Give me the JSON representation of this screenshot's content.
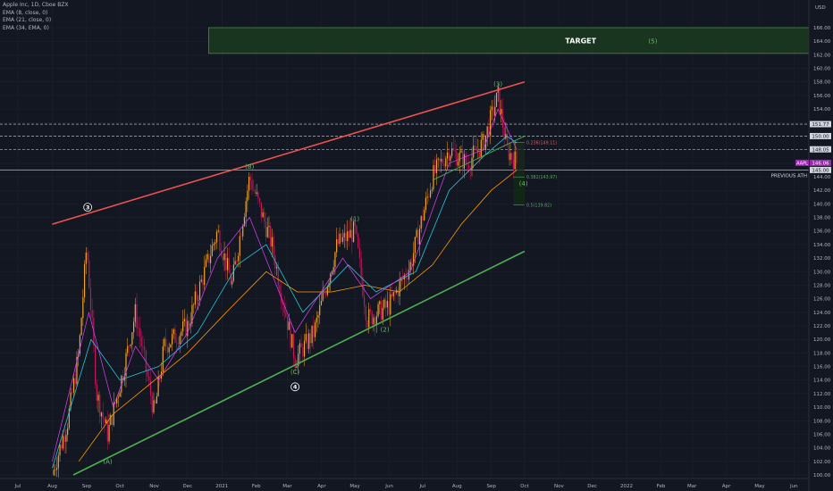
{
  "legend": {
    "symbol_line": "Apple Inc, 1D, Cboe BZX",
    "ema1": "EMA (8, close, 0)",
    "ema2": "EMA (21, close, 0)",
    "ema3": "EMA (34, EMA, 0)"
  },
  "colors": {
    "background": "#131722",
    "grid": "#1f2330",
    "axis_text": "#b2b5be",
    "candle_up": "#f5a623",
    "candle_down": "#c2185b",
    "ema_fast": "#e040fb",
    "ema_mid": "#26c6da",
    "ema_slow": "#ff9800",
    "upper_channel": "#ef5350",
    "lower_channel": "#4caf50",
    "target_zone": "#1b3a1f",
    "wave_label": "#66bb6a",
    "price_tag": "#9c27b0"
  },
  "chart_data": {
    "type": "candlestick",
    "y_unit": "USD",
    "ylim": [
      99,
      170
    ],
    "y_ticks": [
      "166.00",
      "164.00",
      "162.00",
      "160.00",
      "158.00",
      "156.00",
      "154.00",
      "152.00",
      "150.00",
      "148.00",
      "146.00",
      "144.00",
      "142.00",
      "140.00",
      "138.00",
      "136.00",
      "134.00",
      "132.00",
      "130.00",
      "128.00",
      "126.00",
      "124.00",
      "122.00",
      "120.00",
      "118.00",
      "116.00",
      "114.00",
      "112.00",
      "110.00",
      "108.00",
      "106.00",
      "104.00",
      "102.00",
      "100.00"
    ],
    "x_ticks": [
      "Jul",
      "Aug",
      "Sep",
      "Oct",
      "Nov",
      "Dec",
      "2021",
      "Feb",
      "Mar",
      "Apr",
      "May",
      "Jun",
      "Jul",
      "Aug",
      "Sep",
      "Oct",
      "Nov",
      "Dec",
      "2022",
      "Feb",
      "Mar",
      "Apr",
      "May",
      "Jun"
    ],
    "price_path": [
      {
        "date": "2020-08-01",
        "price": 100
      },
      {
        "date": "2020-08-15",
        "price": 108
      },
      {
        "date": "2020-08-25",
        "price": 118
      },
      {
        "date": "2020-09-01",
        "price": 134
      },
      {
        "date": "2020-09-10",
        "price": 112
      },
      {
        "date": "2020-09-20",
        "price": 106
      },
      {
        "date": "2020-10-05",
        "price": 116
      },
      {
        "date": "2020-10-15",
        "price": 124
      },
      {
        "date": "2020-11-01",
        "price": 109
      },
      {
        "date": "2020-11-10",
        "price": 119
      },
      {
        "date": "2020-12-01",
        "price": 122
      },
      {
        "date": "2020-12-28",
        "price": 136
      },
      {
        "date": "2021-01-10",
        "price": 128
      },
      {
        "date": "2021-01-26",
        "price": 144
      },
      {
        "date": "2021-02-15",
        "price": 134
      },
      {
        "date": "2021-03-08",
        "price": 117
      },
      {
        "date": "2021-03-25",
        "price": 121
      },
      {
        "date": "2021-04-15",
        "price": 134
      },
      {
        "date": "2021-05-01",
        "price": 136
      },
      {
        "date": "2021-05-12",
        "price": 123
      },
      {
        "date": "2021-06-01",
        "price": 125
      },
      {
        "date": "2021-06-20",
        "price": 131
      },
      {
        "date": "2021-07-10",
        "price": 144
      },
      {
        "date": "2021-07-25",
        "price": 148
      },
      {
        "date": "2021-08-10",
        "price": 146
      },
      {
        "date": "2021-08-25",
        "price": 149
      },
      {
        "date": "2021-09-07",
        "price": 156
      },
      {
        "date": "2021-09-15",
        "price": 148
      },
      {
        "date": "2021-09-24",
        "price": 146.06
      }
    ],
    "ema8": [
      {
        "date": "2020-08-01",
        "price": 102
      },
      {
        "date": "2020-09-03",
        "price": 124
      },
      {
        "date": "2020-09-25",
        "price": 110
      },
      {
        "date": "2020-10-15",
        "price": 119
      },
      {
        "date": "2020-11-05",
        "price": 114
      },
      {
        "date": "2020-12-01",
        "price": 121
      },
      {
        "date": "2020-12-28",
        "price": 132
      },
      {
        "date": "2021-01-26",
        "price": 138
      },
      {
        "date": "2021-03-08",
        "price": 121
      },
      {
        "date": "2021-04-20",
        "price": 132
      },
      {
        "date": "2021-05-15",
        "price": 126
      },
      {
        "date": "2021-06-20",
        "price": 130
      },
      {
        "date": "2021-07-25",
        "price": 146
      },
      {
        "date": "2021-08-25",
        "price": 148
      },
      {
        "date": "2021-09-07",
        "price": 154
      },
      {
        "date": "2021-09-24",
        "price": 148
      }
    ],
    "ema21": [
      {
        "date": "2020-08-01",
        "price": 101
      },
      {
        "date": "2020-09-05",
        "price": 120
      },
      {
        "date": "2020-10-01",
        "price": 114
      },
      {
        "date": "2020-11-05",
        "price": 116
      },
      {
        "date": "2020-12-10",
        "price": 121
      },
      {
        "date": "2021-01-15",
        "price": 131
      },
      {
        "date": "2021-02-10",
        "price": 134
      },
      {
        "date": "2021-03-15",
        "price": 124
      },
      {
        "date": "2021-04-25",
        "price": 131
      },
      {
        "date": "2021-05-20",
        "price": 127
      },
      {
        "date": "2021-06-25",
        "price": 130
      },
      {
        "date": "2021-07-25",
        "price": 142
      },
      {
        "date": "2021-08-25",
        "price": 147
      },
      {
        "date": "2021-09-15",
        "price": 150
      },
      {
        "date": "2021-09-24",
        "price": 149
      }
    ],
    "ema34": [
      {
        "date": "2020-08-25",
        "price": 102
      },
      {
        "date": "2020-09-25",
        "price": 109
      },
      {
        "date": "2020-10-25",
        "price": 113
      },
      {
        "date": "2020-12-01",
        "price": 118
      },
      {
        "date": "2021-01-05",
        "price": 124
      },
      {
        "date": "2021-02-10",
        "price": 130
      },
      {
        "date": "2021-03-10",
        "price": 127
      },
      {
        "date": "2021-04-10",
        "price": 127
      },
      {
        "date": "2021-05-10",
        "price": 128
      },
      {
        "date": "2021-06-10",
        "price": 127
      },
      {
        "date": "2021-07-10",
        "price": 131
      },
      {
        "date": "2021-08-05",
        "price": 137
      },
      {
        "date": "2021-09-01",
        "price": 142
      },
      {
        "date": "2021-09-24",
        "price": 145
      }
    ],
    "trendlines": {
      "upper": [
        {
          "date": "2020-08-01",
          "price": 137
        },
        {
          "date": "2021-10-01",
          "price": 158
        }
      ],
      "lower": [
        {
          "date": "2020-08-20",
          "price": 100
        },
        {
          "date": "2021-10-01",
          "price": 133
        }
      ],
      "inner": [
        {
          "date": "2021-07-10",
          "price": 143.5
        },
        {
          "date": "2021-10-01",
          "price": 150
        }
      ]
    },
    "target_zone": {
      "from_date": "2020-12-20",
      "to_date": "2022-06-30",
      "price_high": 166,
      "price_low": 162.2,
      "label": "TARGET",
      "wave": "(5)"
    },
    "horizontal_levels": [
      {
        "price": 151.77,
        "label": "151.77",
        "style": "dashed"
      },
      {
        "price": 150.0,
        "label": "150.00",
        "style": "dashed"
      },
      {
        "price": 148.05,
        "label": "148.05",
        "style": "dashed"
      },
      {
        "price": 145.0,
        "label": "145.00",
        "style": "solid",
        "note": "PREVIOUS ATH"
      }
    ],
    "fib_levels": [
      {
        "price": 149.1,
        "label": "0.236(149.11)"
      },
      {
        "price": 143.97,
        "label": "0.382(143.97)"
      },
      {
        "price": 139.82,
        "label": "0.5(139.82)"
      }
    ],
    "current_price": {
      "symbol": "AAPL",
      "price": "146.06"
    },
    "wave_labels": [
      {
        "text": "3",
        "date": "2020-09-02",
        "price": 139.5,
        "style": "circled"
      },
      {
        "text": "(A)",
        "date": "2020-09-20",
        "price": 102,
        "style": "green"
      },
      {
        "text": "(B)",
        "date": "2021-01-26",
        "price": 145.5,
        "style": "green"
      },
      {
        "text": "(C)",
        "date": "2021-03-08",
        "price": 115.2,
        "style": "green"
      },
      {
        "text": "4",
        "date": "2021-03-08",
        "price": 113,
        "style": "circled"
      },
      {
        "text": "(1)",
        "date": "2021-05-01",
        "price": 137.8,
        "style": "green"
      },
      {
        "text": "(2)",
        "date": "2021-05-28",
        "price": 121.5,
        "style": "green"
      },
      {
        "text": "(3)",
        "date": "2021-09-07",
        "price": 157.7,
        "style": "green"
      },
      {
        "text": "(4)",
        "date": "2021-09-30",
        "price": 143,
        "style": "green"
      }
    ]
  }
}
